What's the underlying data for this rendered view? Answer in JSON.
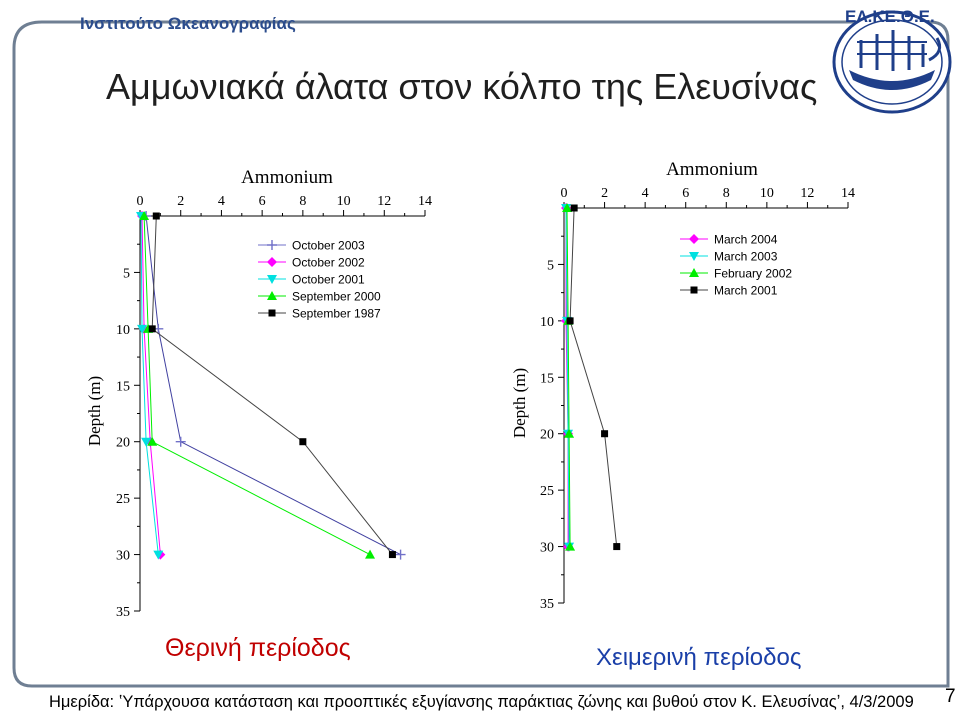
{
  "institute": "Ινστιτούτο Ωκεανογραφίας",
  "title": "Αμμωνιακά άλατα στον κόλπο της Ελευσίνας",
  "logo_text": "ΕΛ.ΚΕ.Θ.Ε.",
  "seasons": {
    "left": "Θερινή περίοδος",
    "right": "Χειμερινή περίοδος"
  },
  "footer": "Ημερίδα: ʽΥπάρχουσα κατάσταση και προοπτικές εξυγίανσης παράκτιας ζώνης και βυθού στον Κ. Ελευσίναςʼ, 4/3/2009",
  "page_number": "7",
  "colors": {
    "accent_blue": "#2b4c8c",
    "summer_title": "#c00000",
    "winter_title": "#1a3fa8",
    "frame": "#6f7f93"
  },
  "chart_data": [
    {
      "type": "line",
      "title": "Ammonium",
      "ylabel": "Depth (m)",
      "xlim": [
        0,
        14
      ],
      "ylim": [
        0,
        35
      ],
      "y_inverted": true,
      "x_ticks": [
        "0",
        "2",
        "4",
        "6",
        "8",
        "10",
        "12",
        "14"
      ],
      "y_ticks": [
        "5",
        "10",
        "15",
        "20",
        "25",
        "30",
        "35"
      ],
      "legend_position": "top-right",
      "series": [
        {
          "name": "October 2003",
          "marker": "plus",
          "color": "#7070c8",
          "points": [
            [
              0.3,
              0
            ],
            [
              0.9,
              10
            ],
            [
              2.0,
              20
            ],
            [
              12.8,
              30
            ]
          ]
        },
        {
          "name": "October 2002",
          "marker": "diamond",
          "color": "#ff00ff",
          "points": [
            [
              0.1,
              0
            ],
            [
              0.2,
              10
            ],
            [
              0.5,
              20
            ],
            [
              1.0,
              30
            ]
          ]
        },
        {
          "name": "October 2001",
          "marker": "triangle_down",
          "color": "#00e0e0",
          "points": [
            [
              0.05,
              0
            ],
            [
              0.1,
              10
            ],
            [
              0.3,
              20
            ],
            [
              0.9,
              30
            ]
          ]
        },
        {
          "name": "September 2000",
          "marker": "triangle",
          "color": "#00ee00",
          "points": [
            [
              0.2,
              0
            ],
            [
              0.4,
              10
            ],
            [
              0.6,
              20
            ],
            [
              11.3,
              30
            ]
          ]
        },
        {
          "name": "September 1987",
          "marker": "square",
          "color": "#000000",
          "points": [
            [
              0.8,
              0
            ],
            [
              0.6,
              10
            ],
            [
              8.0,
              20
            ],
            [
              12.4,
              30
            ]
          ]
        }
      ]
    },
    {
      "type": "line",
      "title": "Ammonium",
      "ylabel": "Depth (m)",
      "xlim": [
        0,
        14
      ],
      "ylim": [
        0,
        35
      ],
      "y_inverted": true,
      "x_ticks": [
        "0",
        "2",
        "4",
        "6",
        "8",
        "10",
        "12",
        "14"
      ],
      "y_ticks": [
        "5",
        "10",
        "15",
        "20",
        "25",
        "30",
        "35"
      ],
      "legend_position": "top-right",
      "series": [
        {
          "name": "March 2004",
          "marker": "diamond",
          "color": "#ff00ff",
          "points": [
            [
              0.1,
              0
            ],
            [
              0.1,
              10
            ],
            [
              0.2,
              20
            ],
            [
              0.2,
              30
            ]
          ]
        },
        {
          "name": "March 2003",
          "marker": "triangle_down",
          "color": "#00e0e0",
          "points": [
            [
              0.1,
              0
            ],
            [
              0.15,
              10
            ],
            [
              0.2,
              20
            ],
            [
              0.25,
              30
            ]
          ]
        },
        {
          "name": "February 2002",
          "marker": "triangle",
          "color": "#00ee00",
          "points": [
            [
              0.15,
              0
            ],
            [
              0.2,
              10
            ],
            [
              0.25,
              20
            ],
            [
              0.3,
              30
            ]
          ]
        },
        {
          "name": "March 2001",
          "marker": "square",
          "color": "#000000",
          "points": [
            [
              0.5,
              0
            ],
            [
              0.3,
              10
            ],
            [
              2.0,
              20
            ],
            [
              2.6,
              30
            ]
          ]
        }
      ]
    }
  ]
}
